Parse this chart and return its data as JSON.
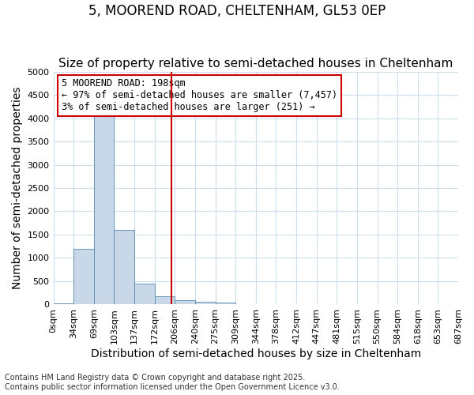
{
  "title_line1": "5, MOOREND ROAD, CHELTENHAM, GL53 0EP",
  "title_line2": "Size of property relative to semi-detached houses in Cheltenham",
  "xlabel": "Distribution of semi-detached houses by size in Cheltenham",
  "ylabel": "Number of semi-detached properties",
  "footnote": "Contains HM Land Registry data © Crown copyright and database right 2025.\nContains public sector information licensed under the Open Government Licence v3.0.",
  "bin_labels": [
    "0sqm",
    "34sqm",
    "69sqm",
    "103sqm",
    "137sqm",
    "172sqm",
    "206sqm",
    "240sqm",
    "275sqm",
    "309sqm",
    "344sqm",
    "378sqm",
    "412sqm",
    "447sqm",
    "481sqm",
    "515sqm",
    "550sqm",
    "584sqm",
    "618sqm",
    "653sqm",
    "687sqm"
  ],
  "bar_values": [
    20,
    1200,
    4050,
    1600,
    450,
    170,
    100,
    65,
    50,
    0,
    0,
    0,
    0,
    0,
    0,
    0,
    0,
    0,
    0,
    0
  ],
  "bar_color": "#c8d8e8",
  "bar_edge_color": "#5588aa",
  "vline_color": "#cc0000",
  "property_sqm": 198,
  "annotation_box_text": "5 MOOREND ROAD: 198sqm\n← 97% of semi-detached houses are smaller (7,457)\n3% of semi-detached houses are larger (251) →",
  "ylim": [
    0,
    5000
  ],
  "yticks": [
    0,
    500,
    1000,
    1500,
    2000,
    2500,
    3000,
    3500,
    4000,
    4500,
    5000
  ],
  "background_color": "#ffffff",
  "grid_color": "#ccddee",
  "title_fontsize": 12,
  "subtitle_fontsize": 11,
  "axis_label_fontsize": 10,
  "tick_fontsize": 8,
  "annotation_fontsize": 8.5
}
